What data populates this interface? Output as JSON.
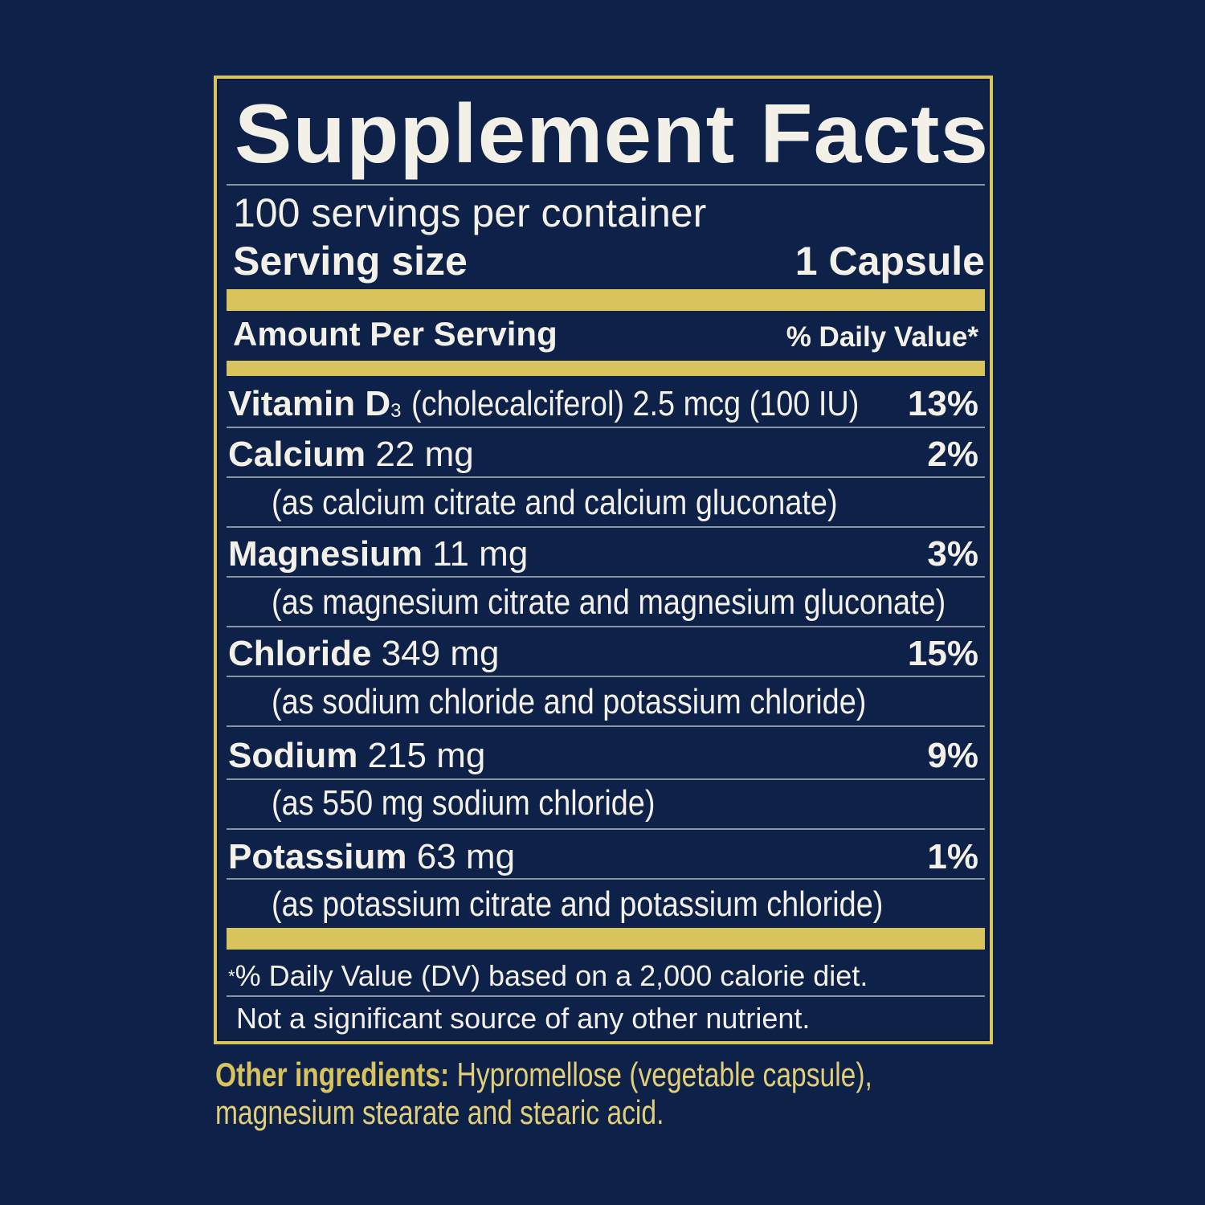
{
  "title": "Supplement Facts",
  "servings_per_container": "100 servings per container",
  "serving_size_label": "Serving size",
  "serving_size_value": "1 Capsule",
  "amount_per_serving": "Amount Per Serving",
  "daily_value_header": "% Daily Value*",
  "nutrients": [
    {
      "name": "Vitamin D",
      "sub": "3",
      "amount": "(cholecalciferol) 2.5 mcg (100 IU)",
      "dv": "13%"
    },
    {
      "name": "Calcium",
      "amount": "22 mg",
      "dv": "2%",
      "source": "(as calcium citrate and calcium gluconate)"
    },
    {
      "name": "Magnesium",
      "amount": "11 mg",
      "dv": "3%",
      "source": "(as magnesium citrate and magnesium gluconate)"
    },
    {
      "name": "Chloride",
      "amount": "349 mg",
      "dv": "15%",
      "source": "(as sodium chloride and potassium chloride)"
    },
    {
      "name": "Sodium",
      "amount": "215 mg",
      "dv": "9%",
      "source": "(as 550 mg sodium chloride)"
    },
    {
      "name": "Potassium",
      "amount": "63 mg",
      "dv": "1%",
      "source": "(as potassium citrate and potassium chloride)"
    }
  ],
  "footnote_star": "*",
  "footnote": "% Daily Value (DV) based on a 2,000 calorie diet.",
  "not_significant": "Not a significant source of any other nutrient.",
  "other_ingredients_label": "Other ingredients:",
  "other_ingredients": "Hypromellose (vegetable capsule), magnesium stearate and stearic acid.",
  "colors": {
    "background": "#0e2249",
    "gold": "#d9c35c",
    "text": "#f3f0e7"
  }
}
